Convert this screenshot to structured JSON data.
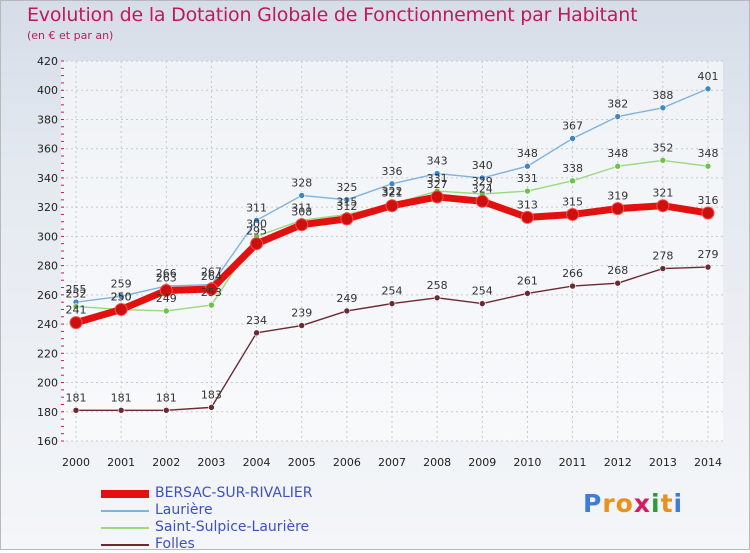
{
  "title": "Evolution de la Dotation Globale de Fonctionnement par Habitant",
  "subtitle": "(en € et par an)",
  "logo": {
    "text": "Proxiti",
    "letters": [
      "P",
      "r",
      "o",
      "x",
      "i",
      "t",
      "i"
    ],
    "colors": [
      "#3b7dd8",
      "#e8921a",
      "#e8921a",
      "#d81b60",
      "#2e9b3a",
      "#e8921a",
      "#3b7dd8"
    ]
  },
  "chart_data": {
    "type": "line",
    "title": "Evolution de la Dotation Globale de Fonctionnement par Habitant",
    "subtitle": "(en € et par an)",
    "x": [
      "2000",
      "2001",
      "2002",
      "2003",
      "2004",
      "2005",
      "2006",
      "2007",
      "2008",
      "2009",
      "2010",
      "2011",
      "2012",
      "2013",
      "2014"
    ],
    "ylim": [
      160,
      420
    ],
    "yticks": [
      160,
      180,
      200,
      220,
      240,
      260,
      280,
      300,
      320,
      340,
      360,
      380,
      400,
      420
    ],
    "grid": true,
    "series": [
      {
        "name": "BERSAC-SUR-RIVALIER",
        "color": "#e31010",
        "marker": "#cc1010",
        "bold": true,
        "values": [
          241,
          250,
          263,
          264,
          295,
          308,
          312,
          321,
          327,
          324,
          313,
          315,
          319,
          321,
          316
        ]
      },
      {
        "name": "Laurière",
        "color": "#7fb2dd",
        "marker": "#3f86c8",
        "bold": false,
        "values": [
          255,
          259,
          266,
          267,
          311,
          328,
          325,
          336,
          343,
          340,
          348,
          367,
          382,
          388,
          401
        ]
      },
      {
        "name": "Saint-Sulpice-Laurière",
        "color": "#9bd87f",
        "marker": "#6cc24a",
        "bold": false,
        "values": [
          252,
          250,
          249,
          253,
          300,
          311,
          315,
          322,
          331,
          329,
          331,
          338,
          348,
          352,
          348
        ]
      },
      {
        "name": "Folles",
        "color": "#6b2a32",
        "marker": "#6b2a32",
        "bold": false,
        "values": [
          181,
          181,
          181,
          183,
          234,
          239,
          249,
          254,
          258,
          254,
          261,
          266,
          268,
          278,
          279
        ]
      }
    ],
    "label_series": [
      "Folles",
      "Laurière",
      "Saint-Sulpice-Laurière",
      "BERSAC-SUR-RIVALIER"
    ]
  }
}
